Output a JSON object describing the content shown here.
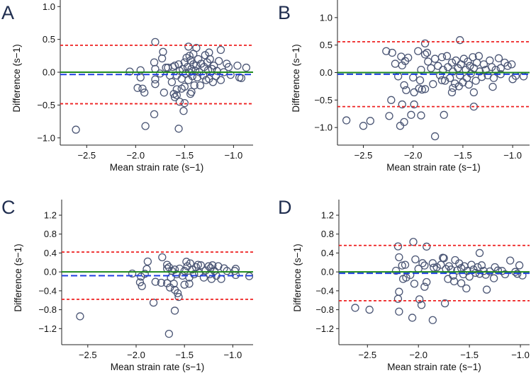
{
  "colors": {
    "marker": "#4b5675",
    "zero_line": "#1f8a1f",
    "bias_line": "#1f3fe0",
    "limit_lines": "#ee2020",
    "letter": "#1f2d4f"
  },
  "chart_data": [
    {
      "type": "scatter",
      "panel_label": "A",
      "xlabel": "Mean strain rate (s−1)",
      "ylabel": "Difference (s−1)",
      "xlim": [
        -2.77,
        -0.8
      ],
      "ylim": [
        -1.11,
        1.1
      ],
      "xticks": [
        -2.5,
        -2.0,
        -1.5,
        -1.0
      ],
      "xtick_labels": [
        "−2.5",
        "−2.0",
        "−1.5",
        "−1.0"
      ],
      "yticks": [
        1.0,
        0.5,
        0.0,
        -0.5,
        -1.0
      ],
      "ytick_labels": [
        "1.0",
        "0.5",
        "0.0",
        "−0.5",
        "−1.0"
      ],
      "reference_line": 0.0,
      "mean_bias": -0.035,
      "upper_loa": 0.41,
      "lower_loa": -0.48,
      "points": [
        [
          -2.61,
          -0.875
        ],
        [
          -2.06,
          0.01
        ],
        [
          -1.95,
          0.03
        ],
        [
          -1.95,
          -0.08
        ],
        [
          -1.98,
          -0.24
        ],
        [
          -1.93,
          -0.25
        ],
        [
          -1.91,
          -0.31
        ],
        [
          -1.8,
          0.46
        ],
        [
          -1.72,
          0.31
        ],
        [
          -1.73,
          0.21
        ],
        [
          -1.81,
          0.15
        ],
        [
          -1.8,
          0.05
        ],
        [
          -1.8,
          -0.11
        ],
        [
          -1.8,
          -0.18
        ],
        [
          -1.81,
          -0.64
        ],
        [
          -1.9,
          -0.82
        ],
        [
          -1.56,
          -0.86
        ],
        [
          -1.71,
          -0.31
        ],
        [
          -1.46,
          0.39
        ],
        [
          -1.38,
          0.37
        ],
        [
          -1.13,
          0.34
        ],
        [
          -1.55,
          -0.45
        ],
        [
          -1.5,
          -0.47
        ],
        [
          -1.51,
          -0.59
        ],
        [
          -1.61,
          -0.33
        ],
        [
          -1.58,
          -0.26
        ],
        [
          -0.87,
          0.07
        ],
        [
          -0.96,
          0.1
        ],
        [
          -0.94,
          -0.08
        ],
        [
          -1.34,
          -0.2
        ],
        [
          -1.29,
          0.26
        ],
        [
          -1.25,
          0.3
        ],
        [
          -1.62,
          0.08
        ],
        [
          -1.6,
          0.1
        ],
        [
          -1.58,
          -0.05
        ],
        [
          -1.56,
          0.12
        ],
        [
          -1.55,
          0.02
        ],
        [
          -1.53,
          -0.1
        ],
        [
          -1.52,
          0.05
        ],
        [
          -1.5,
          0.15
        ],
        [
          -1.49,
          -0.02
        ],
        [
          -1.48,
          0.22
        ],
        [
          -1.47,
          0.08
        ],
        [
          -1.46,
          -0.12
        ],
        [
          -1.45,
          0.0
        ],
        [
          -1.44,
          0.18
        ],
        [
          -1.43,
          0.05
        ],
        [
          -1.42,
          -0.06
        ],
        [
          -1.41,
          0.12
        ],
        [
          -1.4,
          -0.2
        ],
        [
          -1.39,
          0.02
        ],
        [
          -1.38,
          0.1
        ],
        [
          -1.37,
          -0.08
        ],
        [
          -1.36,
          0.2
        ],
        [
          -1.35,
          0.0
        ],
        [
          -1.33,
          0.13
        ],
        [
          -1.31,
          -0.05
        ],
        [
          -1.3,
          0.08
        ],
        [
          -1.28,
          -0.12
        ],
        [
          -1.27,
          0.15
        ],
        [
          -1.26,
          0.03
        ],
        [
          -1.25,
          -0.1
        ],
        [
          -1.24,
          0.2
        ],
        [
          -1.22,
          0.05
        ],
        [
          -1.21,
          -0.15
        ],
        [
          -1.2,
          0.1
        ],
        [
          -1.18,
          -0.06
        ],
        [
          -1.17,
          0.02
        ],
        [
          -1.15,
          0.17
        ],
        [
          -1.13,
          -0.12
        ],
        [
          -1.1,
          0.0
        ],
        [
          -1.07,
          0.13
        ],
        [
          -1.05,
          0.08
        ],
        [
          -1.03,
          -0.04
        ],
        [
          -1.65,
          -0.05
        ],
        [
          -1.67,
          0.07
        ],
        [
          -1.63,
          -0.15
        ],
        [
          -1.58,
          -0.35
        ],
        [
          -1.6,
          -0.38
        ],
        [
          -1.43,
          -0.3
        ],
        [
          -1.44,
          -0.33
        ],
        [
          -1.5,
          -0.22
        ],
        [
          -1.53,
          -0.25
        ],
        [
          -1.45,
          0.25
        ],
        [
          -1.41,
          0.28
        ],
        [
          -1.75,
          -0.02
        ],
        [
          -1.69,
          0.07
        ],
        [
          -0.92,
          -0.09
        ]
      ]
    },
    {
      "type": "scatter",
      "panel_label": "B",
      "xlabel": "Mean strain rate (s−1)",
      "ylabel": "Difference (s−1)",
      "xlim": [
        -2.76,
        -0.83
      ],
      "ylim": [
        -1.32,
        1.32
      ],
      "xticks": [
        -2.5,
        -2.0,
        -1.5,
        -1.0
      ],
      "xtick_labels": [
        "−2.5",
        "−2.0",
        "−1.5",
        "−1.0"
      ],
      "yticks": [
        1.0,
        0.5,
        0.0,
        -0.5,
        -1.0
      ],
      "ytick_labels": [
        "1.0",
        "0.5",
        "0.0",
        "−0.5",
        "−1.0"
      ],
      "reference_line": 0.0,
      "mean_bias": -0.03,
      "upper_loa": 0.56,
      "lower_loa": -0.62,
      "points": [
        [
          -2.67,
          -0.87
        ],
        [
          -2.5,
          -0.97
        ],
        [
          -2.43,
          -0.88
        ],
        [
          -2.27,
          0.39
        ],
        [
          -2.21,
          0.36
        ],
        [
          -2.18,
          0.16
        ],
        [
          -2.22,
          -0.5
        ],
        [
          -2.24,
          -0.79
        ],
        [
          -2.15,
          -0.07
        ],
        [
          -2.12,
          0.29
        ],
        [
          -2.11,
          0.13
        ],
        [
          -2.08,
          0.21
        ],
        [
          -2.05,
          0.27
        ],
        [
          -2.11,
          -0.58
        ],
        [
          -2.13,
          -0.97
        ],
        [
          -2.09,
          -0.9
        ],
        [
          -2.09,
          -0.23
        ],
        [
          -2.07,
          -0.32
        ],
        [
          -2.02,
          -0.77
        ],
        [
          -1.99,
          -0.36
        ],
        [
          -1.99,
          -0.58
        ],
        [
          -2.0,
          -0.09
        ],
        [
          -1.92,
          -0.78
        ],
        [
          -1.95,
          0.39
        ],
        [
          -1.88,
          0.53
        ],
        [
          -1.88,
          0.33
        ],
        [
          -1.86,
          0.36
        ],
        [
          -1.93,
          -0.14
        ],
        [
          -1.91,
          -0.31
        ],
        [
          -1.94,
          -0.29
        ],
        [
          -1.88,
          -0.3
        ],
        [
          -1.8,
          -0.21
        ],
        [
          -1.78,
          -1.16
        ],
        [
          -1.69,
          -0.77
        ],
        [
          -1.53,
          0.59
        ],
        [
          -1.39,
          -0.62
        ],
        [
          -1.2,
          -0.26
        ],
        [
          -1.39,
          -0.36
        ],
        [
          -1.61,
          -0.36
        ],
        [
          -0.89,
          -0.07
        ],
        [
          -1.0,
          -0.12
        ],
        [
          -1.01,
          0.15
        ],
        [
          -0.97,
          -0.06
        ],
        [
          -1.12,
          -0.03
        ],
        [
          -1.92,
          0.05
        ],
        [
          -1.85,
          0.2
        ],
        [
          -1.82,
          0.08
        ],
        [
          -1.78,
          0.25
        ],
        [
          -1.75,
          0.12
        ],
        [
          -1.73,
          -0.05
        ],
        [
          -1.71,
          0.28
        ],
        [
          -1.7,
          0.05
        ],
        [
          -1.68,
          -0.15
        ],
        [
          -1.66,
          0.3
        ],
        [
          -1.65,
          0.1
        ],
        [
          -1.63,
          -0.1
        ],
        [
          -1.61,
          0.18
        ],
        [
          -1.6,
          0.02
        ],
        [
          -1.58,
          -0.2
        ],
        [
          -1.57,
          0.22
        ],
        [
          -1.55,
          0.08
        ],
        [
          -1.53,
          -0.05
        ],
        [
          -1.52,
          0.15
        ],
        [
          -1.5,
          -0.18
        ],
        [
          -1.49,
          0.25
        ],
        [
          -1.47,
          0.05
        ],
        [
          -1.46,
          -0.1
        ],
        [
          -1.45,
          0.2
        ],
        [
          -1.43,
          0.12
        ],
        [
          -1.42,
          -0.02
        ],
        [
          -1.4,
          0.28
        ],
        [
          -1.39,
          0.08
        ],
        [
          -1.37,
          -0.15
        ],
        [
          -1.36,
          0.18
        ],
        [
          -1.34,
          0.3
        ],
        [
          -1.33,
          0.02
        ],
        [
          -1.31,
          -0.08
        ],
        [
          -1.29,
          0.15
        ],
        [
          -1.27,
          0.05
        ],
        [
          -1.25,
          -0.05
        ],
        [
          -1.23,
          0.22
        ],
        [
          -1.21,
          0.1
        ],
        [
          -1.19,
          -0.1
        ],
        [
          -1.17,
          0.05
        ],
        [
          -1.14,
          0.26
        ],
        [
          -1.12,
          0.08
        ],
        [
          -1.08,
          0.18
        ],
        [
          -1.05,
          0.12
        ],
        [
          -1.6,
          -0.28
        ],
        [
          -1.54,
          -0.25
        ],
        [
          -1.44,
          -0.22
        ],
        [
          -1.71,
          -0.14
        ]
      ]
    },
    {
      "type": "scatter",
      "panel_label": "C",
      "xlabel": "Mean strain rate (s−1)",
      "ylabel": "Difference (s−1)",
      "xlim": [
        -2.77,
        -0.79
      ],
      "ylim": [
        -1.54,
        1.53
      ],
      "xticks": [
        -2.5,
        -2.0,
        -1.5,
        -1.0
      ],
      "xtick_labels": [
        "−2.5",
        "−2.0",
        "−1.5",
        "−1.0"
      ],
      "yticks": [
        1.2,
        0.8,
        0.4,
        0.0,
        -0.4,
        -0.8,
        -1.2
      ],
      "ytick_labels": [
        "1.2",
        "0.8",
        "0.4",
        "0.0",
        "−0.4",
        "−0.8",
        "−1.2"
      ],
      "reference_line": 0.0,
      "mean_bias": -0.08,
      "upper_loa": 0.42,
      "lower_loa": -0.58,
      "points": [
        [
          -2.58,
          -0.94
        ],
        [
          -2.04,
          -0.035
        ],
        [
          -1.95,
          -0.1
        ],
        [
          -1.96,
          -0.22
        ],
        [
          -1.94,
          -0.3
        ],
        [
          -1.91,
          -0.04
        ],
        [
          -1.89,
          0.06
        ],
        [
          -1.88,
          0.22
        ],
        [
          -1.8,
          -0.21
        ],
        [
          -1.82,
          -0.65
        ],
        [
          -1.73,
          0.31
        ],
        [
          -1.74,
          -0.23
        ],
        [
          -1.68,
          0.15
        ],
        [
          -1.68,
          0.07
        ],
        [
          -1.68,
          -0.24
        ],
        [
          -1.66,
          -1.31
        ],
        [
          -1.65,
          -0.33
        ],
        [
          -1.6,
          -0.82
        ],
        [
          -1.61,
          -0.25
        ],
        [
          -1.57,
          -0.45
        ],
        [
          -1.56,
          -0.53
        ],
        [
          -1.6,
          -0.38
        ],
        [
          -0.83,
          -0.09
        ],
        [
          -0.97,
          0.065
        ],
        [
          -0.97,
          -0.065
        ],
        [
          -1.09,
          0.075
        ],
        [
          -1.12,
          -0.15
        ],
        [
          -1.5,
          -0.27
        ],
        [
          -1.48,
          0.215
        ],
        [
          -1.66,
          0.1
        ],
        [
          -1.63,
          0.02
        ],
        [
          -1.6,
          0.05
        ],
        [
          -1.58,
          -0.05
        ],
        [
          -1.55,
          0.07
        ],
        [
          -1.52,
          -0.08
        ],
        [
          -1.5,
          0.02
        ],
        [
          -1.47,
          0.12
        ],
        [
          -1.45,
          -0.12
        ],
        [
          -1.44,
          0.18
        ],
        [
          -1.42,
          0.05
        ],
        [
          -1.4,
          -0.05
        ],
        [
          -1.38,
          0.1
        ],
        [
          -1.36,
          0.15
        ],
        [
          -1.35,
          -0.02
        ],
        [
          -1.33,
          0.14
        ],
        [
          -1.3,
          -0.12
        ],
        [
          -1.28,
          0.03
        ],
        [
          -1.25,
          0.12
        ],
        [
          -1.24,
          -0.05
        ],
        [
          -1.23,
          0.08
        ],
        [
          -1.22,
          -0.15
        ],
        [
          -1.21,
          0.14
        ],
        [
          -1.19,
          0.02
        ],
        [
          -1.17,
          -0.08
        ],
        [
          -1.15,
          0.12
        ],
        [
          -1.06,
          0.02
        ],
        [
          -0.98,
          0.02
        ],
        [
          -1.45,
          -0.25
        ],
        [
          -1.64,
          -0.12
        ]
      ]
    },
    {
      "type": "scatter",
      "panel_label": "D",
      "xlabel": "Mean strain rate (s−1)",
      "ylabel": "Difference (s−1)",
      "xlim": [
        -2.78,
        -0.91
      ],
      "ylim": [
        -1.54,
        1.53
      ],
      "xticks": [
        -2.5,
        -2.0,
        -1.5,
        -1.0
      ],
      "xtick_labels": [
        "−2.5",
        "−2.0",
        "−1.5",
        "−1.0"
      ],
      "yticks": [
        1.2,
        0.8,
        0.4,
        0.0,
        -0.4,
        -0.8,
        -1.2
      ],
      "ytick_labels": [
        "1.2",
        "0.8",
        "0.4",
        "0.0",
        "−0.4",
        "−0.8",
        "−1.2"
      ],
      "reference_line": 0.0,
      "mean_bias": -0.03,
      "upper_loa": 0.56,
      "lower_loa": -0.61,
      "points": [
        [
          -2.62,
          -0.76
        ],
        [
          -2.48,
          -0.8
        ],
        [
          -2.2,
          0.54
        ],
        [
          -2.19,
          0.31
        ],
        [
          -2.22,
          0.025
        ],
        [
          -2.19,
          -0.42
        ],
        [
          -2.2,
          -0.57
        ],
        [
          -2.19,
          -0.84
        ],
        [
          -2.16,
          0.135
        ],
        [
          -2.13,
          0.15
        ],
        [
          -2.15,
          -0.15
        ],
        [
          -2.12,
          -0.12
        ],
        [
          -2.08,
          -0.065
        ],
        [
          -2.05,
          0.635
        ],
        [
          -2.06,
          -0.97
        ],
        [
          -2.03,
          0.265
        ],
        [
          -2.04,
          -0.25
        ],
        [
          -2.0,
          0.065
        ],
        [
          -1.99,
          -0.58
        ],
        [
          -1.97,
          -0.7
        ],
        [
          -1.96,
          0.185
        ],
        [
          -1.94,
          0.135
        ],
        [
          -1.94,
          -0.315
        ],
        [
          -1.92,
          -0.215
        ],
        [
          -1.92,
          0.535
        ],
        [
          -1.86,
          -1.02
        ],
        [
          -1.86,
          0.185
        ],
        [
          -1.85,
          0.09
        ],
        [
          -1.74,
          -0.665
        ],
        [
          -1.75,
          0.29
        ],
        [
          -1.71,
          -0.15
        ],
        [
          -1.65,
          -0.2
        ],
        [
          -1.58,
          -0.24
        ],
        [
          -1.53,
          -0.35
        ],
        [
          -1.4,
          0.4
        ],
        [
          -1.33,
          -0.375
        ],
        [
          -1.26,
          -0.135
        ],
        [
          -1.1,
          0.24
        ],
        [
          -1.01,
          0.14
        ],
        [
          -0.98,
          -0.075
        ],
        [
          -1.82,
          0.1
        ],
        [
          -1.78,
          0.15
        ],
        [
          -1.76,
          0.3
        ],
        [
          -1.73,
          0.06
        ],
        [
          -1.7,
          0.12
        ],
        [
          -1.68,
          0.05
        ],
        [
          -1.66,
          -0.08
        ],
        [
          -1.64,
          0.25
        ],
        [
          -1.62,
          0.03
        ],
        [
          -1.6,
          0.18
        ],
        [
          -1.58,
          0.08
        ],
        [
          -1.56,
          -0.05
        ],
        [
          -1.55,
          0.12
        ],
        [
          -1.52,
          0.02
        ],
        [
          -1.5,
          -0.1
        ],
        [
          -1.48,
          0.15
        ],
        [
          -1.46,
          0.05
        ],
        [
          -1.44,
          -0.02
        ],
        [
          -1.42,
          0.1
        ],
        [
          -1.4,
          -0.04
        ],
        [
          -1.38,
          0.14
        ],
        [
          -1.36,
          0.02
        ],
        [
          -1.34,
          -0.06
        ],
        [
          -1.3,
          0.01
        ],
        [
          -1.25,
          0.1
        ],
        [
          -1.22,
          0.03
        ],
        [
          -1.18,
          0.02
        ],
        [
          -1.15,
          -0.05
        ],
        [
          -1.05,
          0.0
        ],
        [
          -1.03,
          -0.04
        ]
      ]
    }
  ]
}
